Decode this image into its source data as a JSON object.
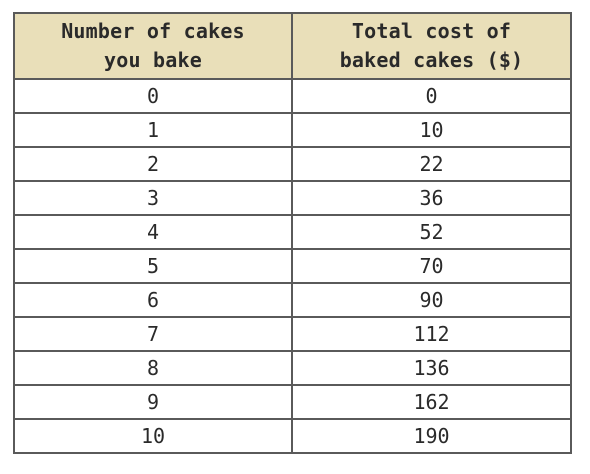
{
  "table": {
    "headers": [
      [
        "Number of cakes",
        "you bake"
      ],
      [
        "Total cost of",
        "baked cakes ($)"
      ]
    ],
    "rows": [
      [
        "0",
        "0"
      ],
      [
        "1",
        "10"
      ],
      [
        "2",
        "22"
      ],
      [
        "3",
        "36"
      ],
      [
        "4",
        "52"
      ],
      [
        "5",
        "70"
      ],
      [
        "6",
        "90"
      ],
      [
        "7",
        "112"
      ],
      [
        "8",
        "136"
      ],
      [
        "9",
        "162"
      ],
      [
        "10",
        "190"
      ]
    ]
  }
}
